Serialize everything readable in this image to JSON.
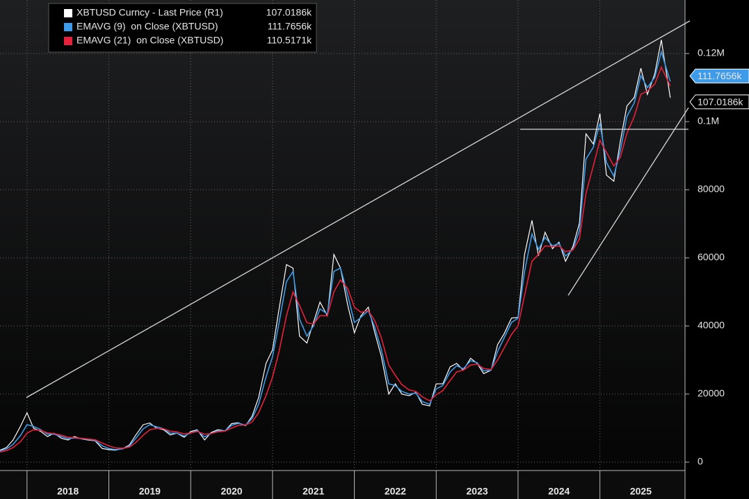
{
  "chart_data": {
    "type": "line",
    "x": [
      2017.67,
      2017.75,
      2017.83,
      2017.92,
      2018.0,
      2018.08,
      2018.17,
      2018.25,
      2018.33,
      2018.42,
      2018.5,
      2018.58,
      2018.67,
      2018.75,
      2018.83,
      2018.92,
      2019.0,
      2019.08,
      2019.17,
      2019.25,
      2019.33,
      2019.42,
      2019.5,
      2019.58,
      2019.67,
      2019.75,
      2019.83,
      2019.92,
      2020.0,
      2020.08,
      2020.17,
      2020.25,
      2020.33,
      2020.42,
      2020.5,
      2020.58,
      2020.67,
      2020.75,
      2020.83,
      2020.92,
      2021.0,
      2021.08,
      2021.17,
      2021.25,
      2021.33,
      2021.42,
      2021.5,
      2021.58,
      2021.67,
      2021.75,
      2021.83,
      2021.92,
      2022.0,
      2022.08,
      2022.17,
      2022.25,
      2022.33,
      2022.42,
      2022.5,
      2022.58,
      2022.67,
      2022.75,
      2022.83,
      2022.92,
      2023.0,
      2023.08,
      2023.17,
      2023.25,
      2023.33,
      2023.42,
      2023.5,
      2023.58,
      2023.67,
      2023.75,
      2023.83,
      2023.92,
      2024.0,
      2024.08,
      2024.17,
      2024.25,
      2024.33,
      2024.42,
      2024.5,
      2024.58,
      2024.67,
      2024.75,
      2024.83,
      2024.92,
      2025.0,
      2025.08,
      2025.17,
      2025.25,
      2025.33,
      2025.42,
      2025.5,
      2025.58,
      2025.67,
      2025.75,
      2025.86
    ],
    "series": [
      {
        "name": "XBTUSD Curncy - Last Price (R1)",
        "color": "#ffffff",
        "values": [
          3500,
          4300,
          6500,
          10500,
          14500,
          10000,
          9000,
          7500,
          8500,
          7000,
          6500,
          7500,
          6800,
          6500,
          6300,
          4000,
          3700,
          3500,
          4000,
          5000,
          8000,
          11000,
          11500,
          10000,
          9500,
          8000,
          8500,
          7300,
          9000,
          9500,
          6500,
          8700,
          9500,
          9200,
          11300,
          11600,
          10700,
          13500,
          19000,
          29000,
          33000,
          45000,
          58000,
          57000,
          37000,
          35000,
          41000,
          47000,
          43000,
          61000,
          57000,
          46000,
          38000,
          43000,
          45500,
          38000,
          31000,
          20000,
          23000,
          20000,
          19500,
          20500,
          17000,
          16500,
          23000,
          23000,
          28000,
          29000,
          27000,
          30500,
          29000,
          26000,
          27000,
          34500,
          37700,
          42300,
          42500,
          61000,
          71000,
          60600,
          67500,
          62700,
          64600,
          59000,
          63300,
          70200,
          96400,
          93400,
          102400,
          84300,
          82500,
          94200,
          104600,
          107100,
          115700,
          108000,
          114000,
          124000,
          107018.6
        ],
        "value_labels": [
          null,
          null,
          null,
          null,
          null,
          null,
          null,
          null,
          null,
          null,
          null,
          null,
          null,
          null,
          null,
          null,
          null,
          null,
          null,
          null,
          null,
          null,
          null,
          null,
          null,
          null,
          null,
          null,
          null,
          null,
          null,
          null,
          null,
          null,
          null,
          null,
          null,
          null,
          null,
          null,
          null,
          null,
          null,
          null,
          null,
          null,
          null,
          null,
          null,
          null,
          null,
          null,
          null,
          null,
          null,
          null,
          null,
          null,
          null,
          null,
          null,
          null,
          null,
          null,
          null,
          null,
          null,
          null,
          null,
          null,
          null,
          null,
          null,
          null,
          null,
          null,
          null,
          null,
          null,
          null,
          null,
          null,
          null,
          null,
          null,
          null,
          null,
          null,
          null,
          null,
          null,
          null,
          null,
          null,
          null,
          null,
          null,
          null,
          "107.0186k"
        ]
      },
      {
        "name": "EMAVG (9)  on Close (XBTUSD)",
        "color": "#3d9be9",
        "values": [
          3300,
          3900,
          5200,
          7800,
          11000,
          10500,
          9500,
          8200,
          8200,
          7500,
          6900,
          7100,
          6900,
          6700,
          6400,
          4800,
          4000,
          3700,
          3900,
          4700,
          7000,
          9800,
          11000,
          10400,
          9800,
          8500,
          8500,
          7700,
          8600,
          9300,
          7400,
          8400,
          9200,
          9200,
          10800,
          11400,
          10900,
          12800,
          17000,
          25000,
          31000,
          41000,
          53000,
          56000,
          42000,
          37000,
          40000,
          45000,
          43500,
          56000,
          57000,
          49000,
          41000,
          42500,
          44500,
          39500,
          33000,
          23000,
          22500,
          20800,
          20000,
          20300,
          17800,
          17000,
          21500,
          22500,
          26500,
          28300,
          27400,
          29800,
          29200,
          26800,
          27000,
          32500,
          36500,
          41000,
          42300,
          56000,
          67000,
          62500,
          66000,
          63500,
          64200,
          60500,
          62500,
          68000,
          89000,
          92500,
          99500,
          88000,
          84000,
          91500,
          101500,
          105500,
          113500,
          110000,
          113000,
          120500,
          111765.6
        ],
        "value_labels": [
          null,
          null,
          null,
          null,
          null,
          null,
          null,
          null,
          null,
          null,
          null,
          null,
          null,
          null,
          null,
          null,
          null,
          null,
          null,
          null,
          null,
          null,
          null,
          null,
          null,
          null,
          null,
          null,
          null,
          null,
          null,
          null,
          null,
          null,
          null,
          null,
          null,
          null,
          null,
          null,
          null,
          null,
          null,
          null,
          null,
          null,
          null,
          null,
          null,
          null,
          null,
          null,
          null,
          null,
          null,
          null,
          null,
          null,
          null,
          null,
          null,
          null,
          null,
          null,
          null,
          null,
          null,
          null,
          null,
          null,
          null,
          null,
          null,
          null,
          null,
          null,
          null,
          null,
          null,
          null,
          null,
          null,
          null,
          null,
          null,
          null,
          null,
          null,
          null,
          null,
          null,
          null,
          null,
          null,
          null,
          null,
          null,
          null,
          "111.7656k"
        ]
      },
      {
        "name": "EMAVG (21)  on Close (XBTUSD)",
        "color": "#e8213a",
        "values": [
          3000,
          3400,
          4300,
          6000,
          8500,
          9500,
          9300,
          8600,
          8400,
          7900,
          7300,
          7200,
          7000,
          6800,
          6600,
          5600,
          4800,
          4200,
          4100,
          4400,
          5800,
          7900,
          9500,
          9900,
          9800,
          9100,
          8900,
          8300,
          8600,
          9000,
          8200,
          8400,
          8900,
          9100,
          10000,
          10800,
          10900,
          11800,
          14500,
          19500,
          25000,
          32500,
          43000,
          50000,
          46000,
          41000,
          40500,
          43000,
          43000,
          50000,
          53500,
          51000,
          45500,
          44000,
          44500,
          41500,
          36500,
          28500,
          25500,
          22800,
          21200,
          20800,
          19200,
          18000,
          19800,
          21000,
          24000,
          26500,
          27000,
          28500,
          28800,
          27500,
          27200,
          30000,
          33500,
          37500,
          40000,
          49000,
          59000,
          61000,
          63500,
          63300,
          63500,
          61800,
          62300,
          65500,
          79000,
          87000,
          94500,
          91000,
          87000,
          89500,
          96500,
          101500,
          108000,
          109000,
          111000,
          116000,
          110517.1
        ],
        "value_labels": [
          null,
          null,
          null,
          null,
          null,
          null,
          null,
          null,
          null,
          null,
          null,
          null,
          null,
          null,
          null,
          null,
          null,
          null,
          null,
          null,
          null,
          null,
          null,
          null,
          null,
          null,
          null,
          null,
          null,
          null,
          null,
          null,
          null,
          null,
          null,
          null,
          null,
          null,
          null,
          null,
          null,
          null,
          null,
          null,
          null,
          null,
          null,
          null,
          null,
          null,
          null,
          null,
          null,
          null,
          null,
          null,
          null,
          null,
          null,
          null,
          null,
          null,
          null,
          null,
          null,
          null,
          null,
          null,
          null,
          null,
          null,
          null,
          null,
          null,
          null,
          null,
          null,
          null,
          null,
          null,
          null,
          null,
          null,
          null,
          null,
          null,
          null,
          null,
          null,
          null,
          null,
          null,
          null,
          null,
          null,
          null,
          null,
          null,
          "110.5171k"
        ]
      }
    ],
    "xlim": [
      2017.67,
      2026.04
    ],
    "xticks": [
      2018,
      2019,
      2020,
      2021,
      2022,
      2023,
      2024,
      2025
    ],
    "ylim": [
      -2449,
      135714
    ],
    "yticks": [
      0,
      20000,
      40000,
      60000,
      80000,
      {
        "value": 100000,
        "label": "0.1M"
      },
      {
        "value": 120000,
        "label": "0.12M"
      }
    ],
    "grid": true
  }
}
